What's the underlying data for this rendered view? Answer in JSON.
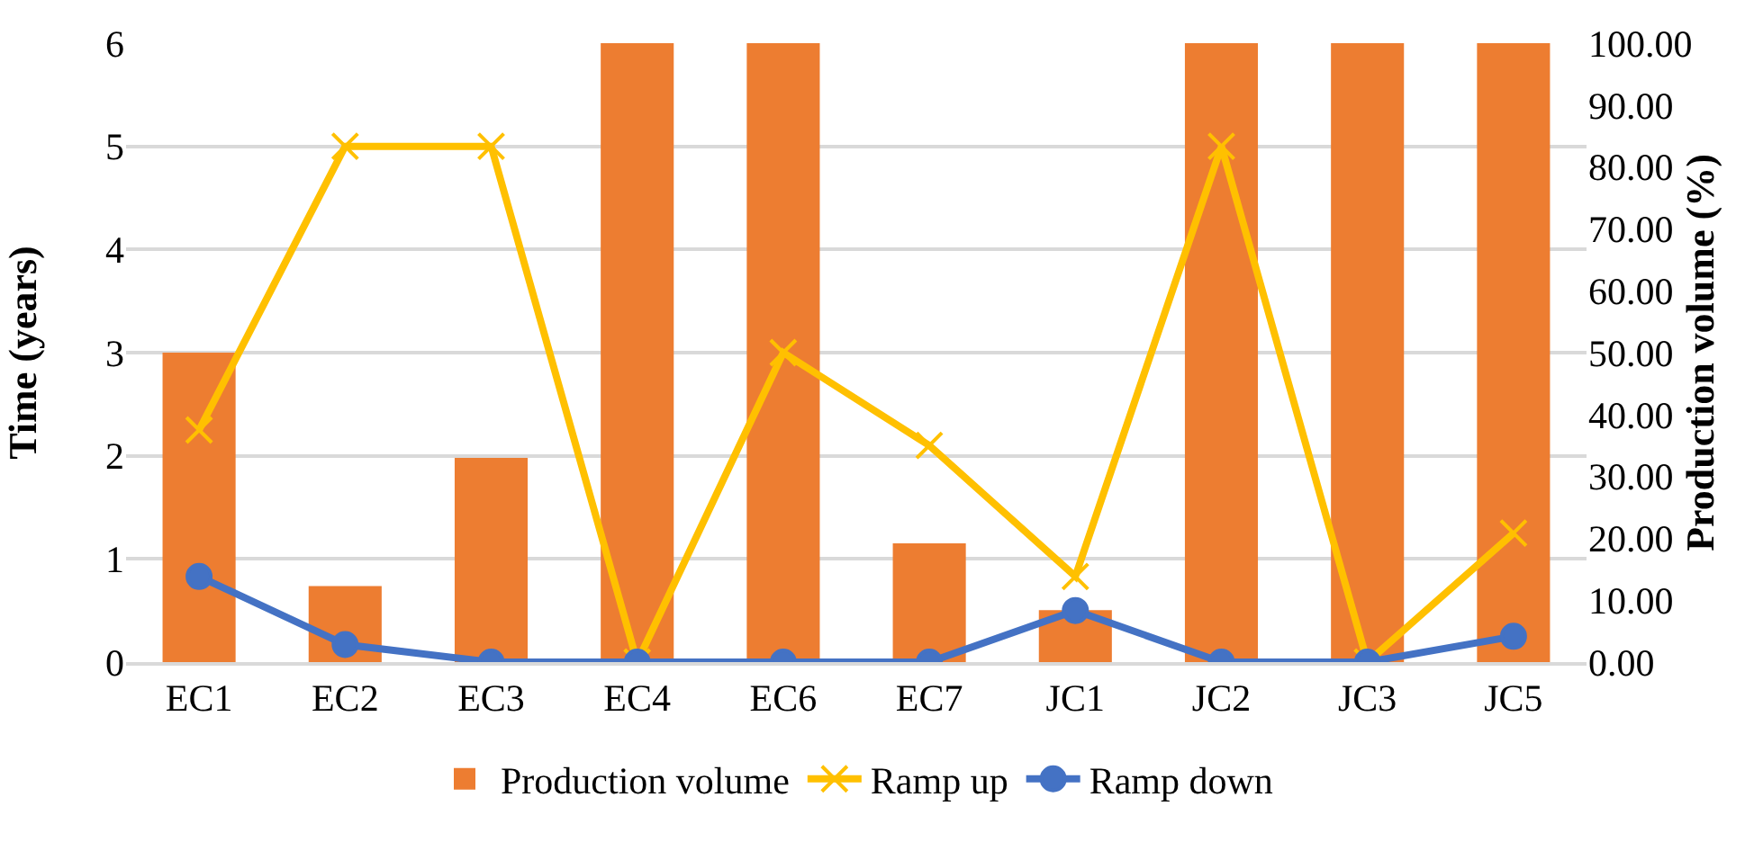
{
  "chart_data": {
    "type": "bar",
    "categories": [
      "EC1",
      "EC2",
      "EC3",
      "EC4",
      "EC6",
      "EC7",
      "JC1",
      "JC2",
      "JC3",
      "JC5"
    ],
    "ylabel": "Time (years)",
    "y2label": "Production volume (%)",
    "ylim": [
      0,
      6
    ],
    "yticks": [
      0,
      1,
      2,
      3,
      4,
      5,
      6
    ],
    "y2lim": [
      0,
      100
    ],
    "y2ticks": [
      {
        "value": 0,
        "label": "0.00"
      },
      {
        "value": 10,
        "label": "10.00"
      },
      {
        "value": 20,
        "label": "20.00"
      },
      {
        "value": 30,
        "label": "30.00"
      },
      {
        "value": 40,
        "label": "40.00"
      },
      {
        "value": 50,
        "label": "50.00"
      },
      {
        "value": 60,
        "label": "60.00"
      },
      {
        "value": 70,
        "label": "70.00"
      },
      {
        "value": 80,
        "label": "80.00"
      },
      {
        "value": 90,
        "label": "90.00"
      },
      {
        "value": 100,
        "label": "100.00"
      }
    ],
    "grid": "y",
    "legend": "bottom",
    "series": [
      {
        "name": "Production volume",
        "axis": "y2",
        "color": "#ed7d31",
        "values": [
          50,
          12.3,
          33,
          100,
          100,
          19.2,
          8.4,
          100,
          100,
          100
        ]
      },
      {
        "name": "Ramp up",
        "type": "line",
        "axis": "y",
        "color": "#ffc000",
        "marker": "cross",
        "values": [
          2.25,
          5,
          5,
          0,
          3,
          2.1,
          0.83,
          5,
          0,
          1.25
        ]
      },
      {
        "name": "Ramp down",
        "type": "line",
        "axis": "y",
        "color": "#4472c4",
        "marker": "circle",
        "values": [
          0.83,
          0.17,
          0,
          0,
          0,
          0,
          0.5,
          0,
          0,
          0.25
        ]
      }
    ]
  }
}
